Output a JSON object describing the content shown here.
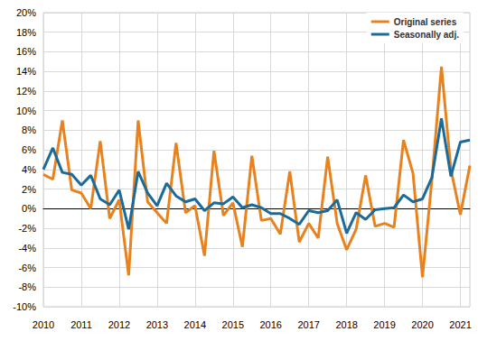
{
  "chart_data": {
    "type": "line",
    "categories": [
      "2010",
      null,
      null,
      null,
      "2011",
      null,
      null,
      null,
      "2012",
      null,
      null,
      null,
      "2013",
      null,
      null,
      null,
      "2014",
      null,
      null,
      null,
      "2015",
      null,
      null,
      null,
      "2016",
      null,
      null,
      null,
      "2017",
      null,
      null,
      null,
      "2018",
      null,
      null,
      null,
      "2019",
      null,
      null,
      null,
      "2020",
      null,
      null,
      null,
      "2021",
      null
    ],
    "series": [
      {
        "name": "Original series",
        "color": "#e8821e",
        "values": [
          3.5,
          3.0,
          9.0,
          1.9,
          1.6,
          0.0,
          6.9,
          -1.0,
          0.9,
          -6.8,
          9.0,
          0.7,
          -0.4,
          -1.5,
          6.7,
          -0.4,
          0.3,
          -4.8,
          5.9,
          -0.7,
          0.6,
          -3.9,
          5.4,
          -1.2,
          -1.0,
          -2.6,
          3.8,
          -3.4,
          -1.5,
          -3.0,
          5.3,
          -1.5,
          -4.2,
          -2.1,
          3.4,
          -1.8,
          -1.5,
          -1.9,
          7.0,
          3.6,
          -7.0,
          3.0,
          14.5,
          4.0,
          -0.6,
          4.4
        ]
      },
      {
        "name": "Seasonally adj.",
        "color": "#1b6b9a",
        "values": [
          4.0,
          6.2,
          3.7,
          3.5,
          2.4,
          3.4,
          1.0,
          0.4,
          1.9,
          -2.1,
          3.8,
          1.6,
          0.3,
          2.6,
          1.3,
          0.7,
          1.0,
          -0.2,
          0.6,
          0.5,
          1.2,
          0.1,
          0.4,
          0.1,
          -0.5,
          -0.5,
          -1.0,
          -1.6,
          -0.2,
          -0.4,
          -0.2,
          0.9,
          -2.5,
          -0.4,
          -1.1,
          -0.1,
          0.0,
          0.1,
          1.4,
          0.7,
          1.0,
          3.2,
          9.2,
          3.3,
          6.8,
          7.0
        ]
      }
    ],
    "ylim": [
      -10,
      20
    ],
    "yticks": [
      {
        "value": -10,
        "label": "-10%"
      },
      {
        "value": -8,
        "label": "-8%"
      },
      {
        "value": -6,
        "label": "-6%"
      },
      {
        "value": -4,
        "label": "-4%"
      },
      {
        "value": -2,
        "label": "-2%"
      },
      {
        "value": 0,
        "label": "0%"
      },
      {
        "value": 2,
        "label": "2%"
      },
      {
        "value": 4,
        "label": "4%"
      },
      {
        "value": 6,
        "label": "6%"
      },
      {
        "value": 8,
        "label": "8%"
      },
      {
        "value": 10,
        "label": "10%"
      },
      {
        "value": 12,
        "label": "12%"
      },
      {
        "value": 14,
        "label": "14%"
      },
      {
        "value": 16,
        "label": "16%"
      },
      {
        "value": 18,
        "label": "18%"
      },
      {
        "value": 20,
        "label": "20%"
      }
    ],
    "grid": true,
    "legend": "top-right"
  }
}
